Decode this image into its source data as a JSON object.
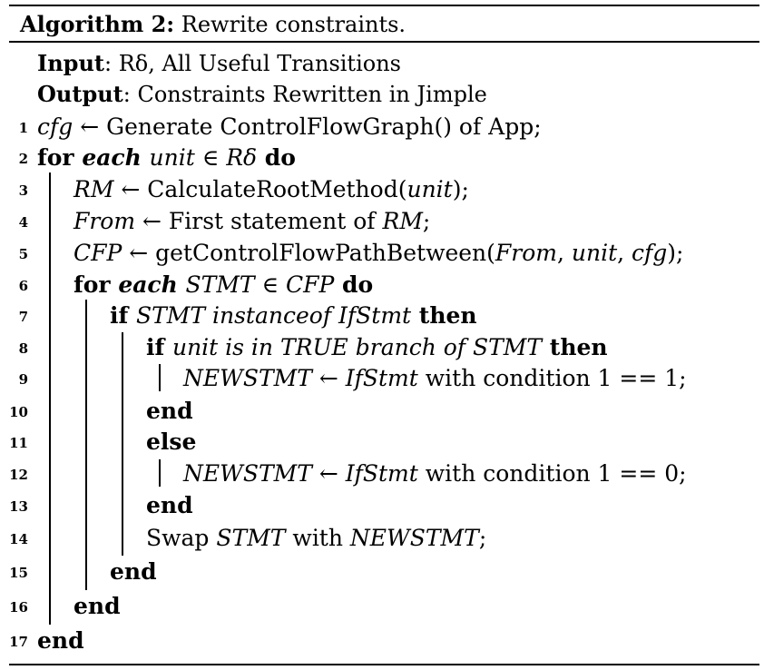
{
  "algorithm": {
    "title_label": "Algorithm 2:",
    "title_text": "Rewrite constraints.",
    "input_label": "Input",
    "input_text": ": Rδ, All Useful Transitions",
    "output_label": "Output",
    "output_text": ": Constraints Rewritten in Jimple",
    "lines": [
      {
        "n": "1",
        "parts": [
          [
            "i",
            "cfg"
          ],
          [
            "r",
            " ← Generate ControlFlowGraph() of App;"
          ]
        ]
      },
      {
        "n": "2",
        "parts": [
          [
            "b",
            "for "
          ],
          [
            "bi",
            "each "
          ],
          [
            "i",
            "unit"
          ],
          [
            "r",
            " ∈ "
          ],
          [
            "i",
            "Rδ"
          ],
          [
            "b",
            " do"
          ]
        ]
      },
      {
        "n": "3",
        "parts": [
          [
            "i",
            "RM"
          ],
          [
            "r",
            " ← CalculateRootMethod("
          ],
          [
            "i",
            "unit"
          ],
          [
            "r",
            ");"
          ]
        ]
      },
      {
        "n": "4",
        "parts": [
          [
            "i",
            "From"
          ],
          [
            "r",
            " ← First statement of "
          ],
          [
            "i",
            "RM"
          ],
          [
            "r",
            ";"
          ]
        ]
      },
      {
        "n": "5",
        "parts": [
          [
            "i",
            "CFP"
          ],
          [
            "r",
            " ← getControlFlowPathBetween("
          ],
          [
            "i",
            "From"
          ],
          [
            "r",
            ", "
          ],
          [
            "i",
            "unit"
          ],
          [
            "r",
            ", "
          ],
          [
            "i",
            "cfg"
          ],
          [
            "r",
            ");"
          ]
        ]
      },
      {
        "n": "6",
        "parts": [
          [
            "b",
            "for "
          ],
          [
            "bi",
            "each "
          ],
          [
            "i",
            "STMT"
          ],
          [
            "r",
            " ∈ "
          ],
          [
            "i",
            "CFP"
          ],
          [
            "b",
            " do"
          ]
        ]
      },
      {
        "n": "7",
        "parts": [
          [
            "b",
            "if "
          ],
          [
            "i",
            "STMT instanceof IfStmt"
          ],
          [
            "b",
            " then"
          ]
        ]
      },
      {
        "n": "8",
        "parts": [
          [
            "b",
            "if "
          ],
          [
            "i",
            "unit is in TRUE branch of STMT"
          ],
          [
            "b",
            " then"
          ]
        ]
      },
      {
        "n": "9",
        "parts": [
          [
            "i",
            "NEWSTMT"
          ],
          [
            "r",
            " ← "
          ],
          [
            "i",
            "IfStmt"
          ],
          [
            "r",
            " with condition 1 == 1;"
          ]
        ]
      },
      {
        "n": "10",
        "parts": [
          [
            "b",
            "end"
          ]
        ]
      },
      {
        "n": "11",
        "parts": [
          [
            "b",
            "else"
          ]
        ]
      },
      {
        "n": "12",
        "parts": [
          [
            "i",
            "NEWSTMT"
          ],
          [
            "r",
            " ← "
          ],
          [
            "i",
            "IfStmt"
          ],
          [
            "r",
            " with condition 1 == 0;"
          ]
        ]
      },
      {
        "n": "13",
        "parts": [
          [
            "b",
            "end"
          ]
        ]
      },
      {
        "n": "14",
        "parts": [
          [
            "r",
            "Swap "
          ],
          [
            "i",
            "STMT"
          ],
          [
            "r",
            " with "
          ],
          [
            "i",
            "NEWSTMT"
          ],
          [
            "r",
            ";"
          ]
        ]
      },
      {
        "n": "15",
        "parts": [
          [
            "b",
            "end"
          ]
        ]
      },
      {
        "n": "16",
        "parts": [
          [
            "b",
            "end"
          ]
        ]
      },
      {
        "n": "17",
        "parts": [
          [
            "b",
            "end"
          ]
        ]
      }
    ]
  }
}
